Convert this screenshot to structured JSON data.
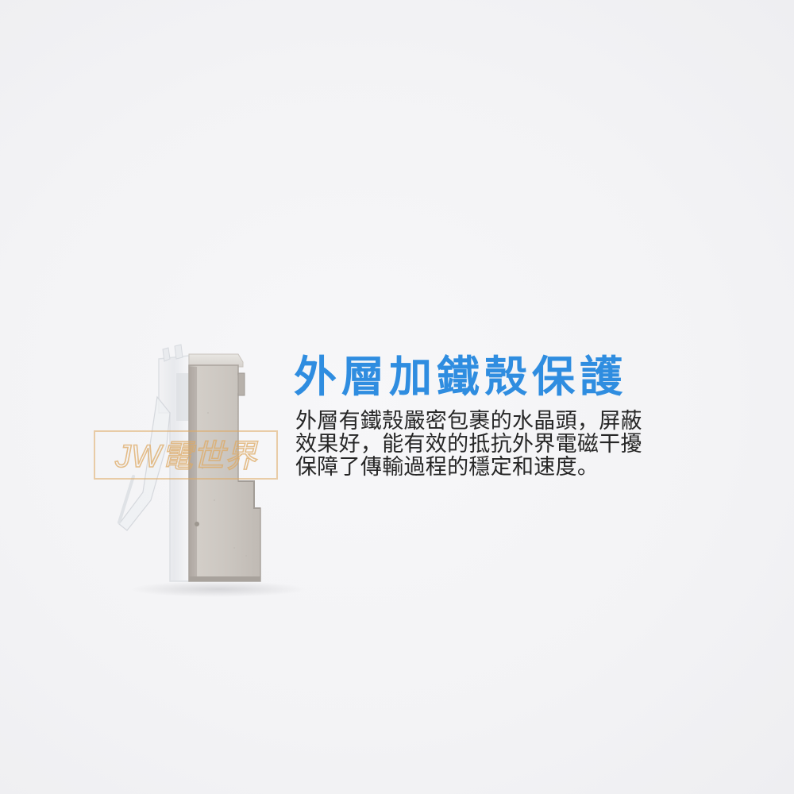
{
  "watermark": {
    "text": "JW電世界"
  },
  "heading": {
    "title": "外層加鐵殼保護"
  },
  "description": {
    "lines": [
      "外層有鐵殼嚴密包裹的水晶頭，屏蔽",
      "效果好，能有效的抵抗外界電磁干擾",
      "保障了傳輸過程的穩定和速度。"
    ]
  },
  "colors": {
    "title": "#2f8de0",
    "body_text": "#262626",
    "background": "#f4f4f6",
    "watermark": "#deaa64"
  },
  "image": {
    "subject": "shielded-rj45-connector"
  }
}
